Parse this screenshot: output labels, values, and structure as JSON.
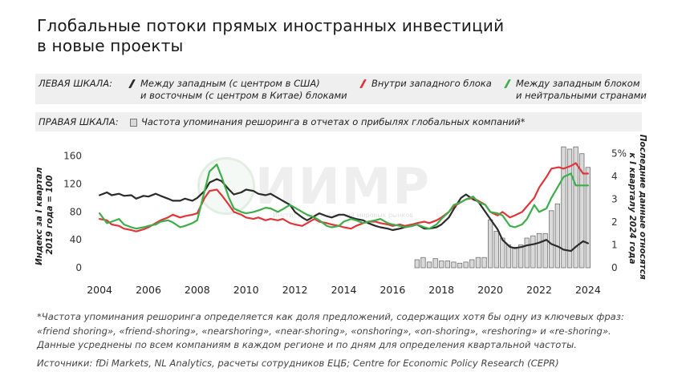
{
  "title_line1": "Глобальные потоки прямых иностранных инвестиций",
  "title_line2": "в новые проекты",
  "legend": {
    "left_label": "ЛЕВАЯ ШКАЛА:",
    "right_label": "ПРАВАЯ ШКАЛА:",
    "east_west_line1": "Между западным (с центром в США)",
    "east_west_line2": "и восточным (с центром в Китае) блоками",
    "intra_west": "Внутри западного блока",
    "west_neutral_line1": "Между западным блоком",
    "west_neutral_line2": "и нейтральными странами",
    "reshoring": "Частота упоминания решоринга в отчетах о прибылях глобальных компаний*"
  },
  "watermark": {
    "text": "ИИМР",
    "subtext": "Институт исследований мировых рынков"
  },
  "colors": {
    "east_west": "#2b2b2b",
    "intra_west": "#e0363b",
    "west_neutral": "#3dae4a",
    "bars_fill": "#d9d9d9",
    "bars_stroke": "#6f6f6f"
  },
  "chart_data": {
    "type": "line",
    "ylabel_left": "Индекс за I квартал 2019 года = 100",
    "ylabel_right": "Последние данные относятся к I кварталу 2024 года",
    "x_ticks": [
      "2004",
      "2006",
      "2008",
      "2010",
      "2012",
      "2014",
      "2016",
      "2018",
      "2020",
      "2022",
      "2024"
    ],
    "y_left_ticks": [
      "0",
      "40",
      "80",
      "120",
      "160"
    ],
    "y_right_ticks": [
      "0",
      "1",
      "2",
      "3",
      "4",
      "5%"
    ],
    "ylim_left": [
      0,
      170
    ],
    "ylim_right": [
      0,
      5.2
    ],
    "xlim": [
      2003.8,
      2024.3
    ],
    "grid": false,
    "series": [
      {
        "name": "Между западным (с центром в США) и восточным (с центром в Китае) блоками",
        "axis": "left",
        "color": "#2b2b2b",
        "points": [
          [
            2004.0,
            104
          ],
          [
            2004.3,
            108
          ],
          [
            2004.5,
            104
          ],
          [
            2004.8,
            106
          ],
          [
            2005.0,
            103
          ],
          [
            2005.3,
            104
          ],
          [
            2005.5,
            99
          ],
          [
            2005.8,
            103
          ],
          [
            2006.0,
            102
          ],
          [
            2006.3,
            106
          ],
          [
            2006.5,
            103
          ],
          [
            2006.8,
            99
          ],
          [
            2007.0,
            96
          ],
          [
            2007.3,
            96
          ],
          [
            2007.5,
            99
          ],
          [
            2007.8,
            96
          ],
          [
            2008.0,
            100
          ],
          [
            2008.3,
            110
          ],
          [
            2008.5,
            122
          ],
          [
            2008.8,
            127
          ],
          [
            2009.0,
            124
          ],
          [
            2009.3,
            112
          ],
          [
            2009.5,
            105
          ],
          [
            2009.8,
            108
          ],
          [
            2010.0,
            112
          ],
          [
            2010.3,
            110
          ],
          [
            2010.5,
            106
          ],
          [
            2010.8,
            104
          ],
          [
            2011.0,
            106
          ],
          [
            2011.3,
            100
          ],
          [
            2011.5,
            96
          ],
          [
            2011.8,
            90
          ],
          [
            2012.0,
            80
          ],
          [
            2012.3,
            72
          ],
          [
            2012.5,
            68
          ],
          [
            2012.8,
            74
          ],
          [
            2013.0,
            78
          ],
          [
            2013.3,
            74
          ],
          [
            2013.5,
            72
          ],
          [
            2013.8,
            76
          ],
          [
            2014.0,
            76
          ],
          [
            2014.3,
            72
          ],
          [
            2014.5,
            70
          ],
          [
            2014.8,
            68
          ],
          [
            2015.0,
            64
          ],
          [
            2015.3,
            60
          ],
          [
            2015.5,
            58
          ],
          [
            2015.8,
            56
          ],
          [
            2016.0,
            54
          ],
          [
            2016.3,
            56
          ],
          [
            2016.5,
            58
          ],
          [
            2016.8,
            60
          ],
          [
            2017.0,
            62
          ],
          [
            2017.3,
            56
          ],
          [
            2017.5,
            56
          ],
          [
            2017.8,
            58
          ],
          [
            2018.0,
            62
          ],
          [
            2018.3,
            72
          ],
          [
            2018.5,
            84
          ],
          [
            2018.8,
            100
          ],
          [
            2019.0,
            105
          ],
          [
            2019.3,
            98
          ],
          [
            2019.5,
            95
          ],
          [
            2019.8,
            80
          ],
          [
            2020.0,
            70
          ],
          [
            2020.3,
            55
          ],
          [
            2020.5,
            40
          ],
          [
            2020.8,
            30
          ],
          [
            2021.0,
            28
          ],
          [
            2021.3,
            30
          ],
          [
            2021.5,
            32
          ],
          [
            2021.8,
            34
          ],
          [
            2022.0,
            36
          ],
          [
            2022.3,
            40
          ],
          [
            2022.5,
            34
          ],
          [
            2022.8,
            30
          ],
          [
            2023.0,
            26
          ],
          [
            2023.3,
            24
          ],
          [
            2023.5,
            30
          ],
          [
            2023.8,
            38
          ],
          [
            2024.0,
            35
          ]
        ]
      },
      {
        "name": "Внутри западного блока",
        "axis": "left",
        "color": "#e0363b",
        "points": [
          [
            2004.0,
            70
          ],
          [
            2004.3,
            68
          ],
          [
            2004.5,
            62
          ],
          [
            2004.8,
            60
          ],
          [
            2005.0,
            56
          ],
          [
            2005.3,
            54
          ],
          [
            2005.5,
            52
          ],
          [
            2005.8,
            55
          ],
          [
            2006.0,
            58
          ],
          [
            2006.3,
            64
          ],
          [
            2006.5,
            68
          ],
          [
            2006.8,
            72
          ],
          [
            2007.0,
            76
          ],
          [
            2007.3,
            72
          ],
          [
            2007.5,
            74
          ],
          [
            2007.8,
            76
          ],
          [
            2008.0,
            78
          ],
          [
            2008.3,
            100
          ],
          [
            2008.5,
            110
          ],
          [
            2008.8,
            112
          ],
          [
            2009.0,
            104
          ],
          [
            2009.3,
            90
          ],
          [
            2009.5,
            80
          ],
          [
            2009.8,
            76
          ],
          [
            2010.0,
            72
          ],
          [
            2010.3,
            70
          ],
          [
            2010.5,
            72
          ],
          [
            2010.8,
            68
          ],
          [
            2011.0,
            70
          ],
          [
            2011.3,
            68
          ],
          [
            2011.5,
            70
          ],
          [
            2011.8,
            64
          ],
          [
            2012.0,
            62
          ],
          [
            2012.3,
            60
          ],
          [
            2012.5,
            64
          ],
          [
            2012.8,
            70
          ],
          [
            2013.0,
            66
          ],
          [
            2013.3,
            64
          ],
          [
            2013.5,
            62
          ],
          [
            2013.8,
            60
          ],
          [
            2014.0,
            58
          ],
          [
            2014.3,
            56
          ],
          [
            2014.5,
            60
          ],
          [
            2014.8,
            64
          ],
          [
            2015.0,
            66
          ],
          [
            2015.3,
            66
          ],
          [
            2015.5,
            64
          ],
          [
            2015.8,
            62
          ],
          [
            2016.0,
            60
          ],
          [
            2016.3,
            62
          ],
          [
            2016.5,
            60
          ],
          [
            2016.8,
            62
          ],
          [
            2017.0,
            64
          ],
          [
            2017.3,
            66
          ],
          [
            2017.5,
            64
          ],
          [
            2017.8,
            68
          ],
          [
            2018.0,
            72
          ],
          [
            2018.3,
            80
          ],
          [
            2018.5,
            88
          ],
          [
            2018.8,
            94
          ],
          [
            2019.0,
            98
          ],
          [
            2019.3,
            100
          ],
          [
            2019.5,
            96
          ],
          [
            2019.8,
            90
          ],
          [
            2020.0,
            80
          ],
          [
            2020.3,
            75
          ],
          [
            2020.5,
            80
          ],
          [
            2020.8,
            72
          ],
          [
            2021.0,
            75
          ],
          [
            2021.3,
            80
          ],
          [
            2021.5,
            88
          ],
          [
            2021.8,
            100
          ],
          [
            2022.0,
            115
          ],
          [
            2022.3,
            130
          ],
          [
            2022.5,
            142
          ],
          [
            2022.8,
            144
          ],
          [
            2023.0,
            142
          ],
          [
            2023.3,
            146
          ],
          [
            2023.5,
            150
          ],
          [
            2023.8,
            135
          ],
          [
            2024.0,
            135
          ]
        ]
      },
      {
        "name": "Между западным блоком и нейтральными странами",
        "axis": "left",
        "color": "#3dae4a",
        "points": [
          [
            2004.0,
            78
          ],
          [
            2004.3,
            64
          ],
          [
            2004.5,
            66
          ],
          [
            2004.8,
            70
          ],
          [
            2005.0,
            62
          ],
          [
            2005.3,
            58
          ],
          [
            2005.5,
            56
          ],
          [
            2005.8,
            58
          ],
          [
            2006.0,
            60
          ],
          [
            2006.3,
            62
          ],
          [
            2006.5,
            66
          ],
          [
            2006.8,
            68
          ],
          [
            2007.0,
            65
          ],
          [
            2007.3,
            58
          ],
          [
            2007.5,
            60
          ],
          [
            2007.8,
            64
          ],
          [
            2008.0,
            68
          ],
          [
            2008.3,
            110
          ],
          [
            2008.5,
            138
          ],
          [
            2008.8,
            148
          ],
          [
            2009.0,
            130
          ],
          [
            2009.3,
            100
          ],
          [
            2009.5,
            85
          ],
          [
            2009.8,
            80
          ],
          [
            2010.0,
            78
          ],
          [
            2010.3,
            80
          ],
          [
            2010.5,
            82
          ],
          [
            2010.8,
            86
          ],
          [
            2011.0,
            85
          ],
          [
            2011.3,
            80
          ],
          [
            2011.5,
            84
          ],
          [
            2011.8,
            90
          ],
          [
            2012.0,
            86
          ],
          [
            2012.3,
            80
          ],
          [
            2012.5,
            76
          ],
          [
            2012.8,
            72
          ],
          [
            2013.0,
            68
          ],
          [
            2013.3,
            60
          ],
          [
            2013.5,
            58
          ],
          [
            2013.8,
            60
          ],
          [
            2014.0,
            66
          ],
          [
            2014.3,
            70
          ],
          [
            2014.5,
            68
          ],
          [
            2014.8,
            64
          ],
          [
            2015.0,
            66
          ],
          [
            2015.3,
            68
          ],
          [
            2015.5,
            70
          ],
          [
            2015.8,
            64
          ],
          [
            2016.0,
            62
          ],
          [
            2016.3,
            60
          ],
          [
            2016.5,
            58
          ],
          [
            2016.8,
            60
          ],
          [
            2017.0,
            62
          ],
          [
            2017.3,
            58
          ],
          [
            2017.5,
            56
          ],
          [
            2017.8,
            62
          ],
          [
            2018.0,
            70
          ],
          [
            2018.3,
            80
          ],
          [
            2018.5,
            90
          ],
          [
            2018.8,
            94
          ],
          [
            2019.0,
            98
          ],
          [
            2019.3,
            102
          ],
          [
            2019.5,
            94
          ],
          [
            2019.8,
            90
          ],
          [
            2020.0,
            80
          ],
          [
            2020.3,
            78
          ],
          [
            2020.5,
            75
          ],
          [
            2020.8,
            60
          ],
          [
            2021.0,
            58
          ],
          [
            2021.3,
            62
          ],
          [
            2021.5,
            70
          ],
          [
            2021.8,
            90
          ],
          [
            2022.0,
            80
          ],
          [
            2022.3,
            85
          ],
          [
            2022.5,
            100
          ],
          [
            2022.8,
            118
          ],
          [
            2023.0,
            130
          ],
          [
            2023.3,
            135
          ],
          [
            2023.5,
            118
          ],
          [
            2023.8,
            118
          ],
          [
            2024.0,
            118
          ]
        ]
      },
      {
        "name": "Частота упоминания решоринга в отчетах о прибылях глобальных компаний*",
        "axis": "right",
        "type": "bar",
        "points": [
          [
            2017.0,
            0.35
          ],
          [
            2017.25,
            0.45
          ],
          [
            2017.5,
            0.25
          ],
          [
            2017.75,
            0.4
          ],
          [
            2018.0,
            0.3
          ],
          [
            2018.25,
            0.3
          ],
          [
            2018.5,
            0.25
          ],
          [
            2018.75,
            0.2
          ],
          [
            2019.0,
            0.25
          ],
          [
            2019.25,
            0.35
          ],
          [
            2019.5,
            0.45
          ],
          [
            2019.75,
            0.45
          ],
          [
            2020.0,
            2.1
          ],
          [
            2020.25,
            1.6
          ],
          [
            2020.5,
            1.3
          ],
          [
            2020.75,
            1.0
          ],
          [
            2021.0,
            0.9
          ],
          [
            2021.25,
            1.0
          ],
          [
            2021.5,
            1.3
          ],
          [
            2021.75,
            1.4
          ],
          [
            2022.0,
            1.5
          ],
          [
            2022.25,
            1.5
          ],
          [
            2022.5,
            2.5
          ],
          [
            2022.75,
            2.8
          ],
          [
            2023.0,
            5.3
          ],
          [
            2023.25,
            5.2
          ],
          [
            2023.5,
            5.3
          ],
          [
            2023.75,
            5.0
          ],
          [
            2024.0,
            4.4
          ]
        ]
      }
    ]
  }
}
